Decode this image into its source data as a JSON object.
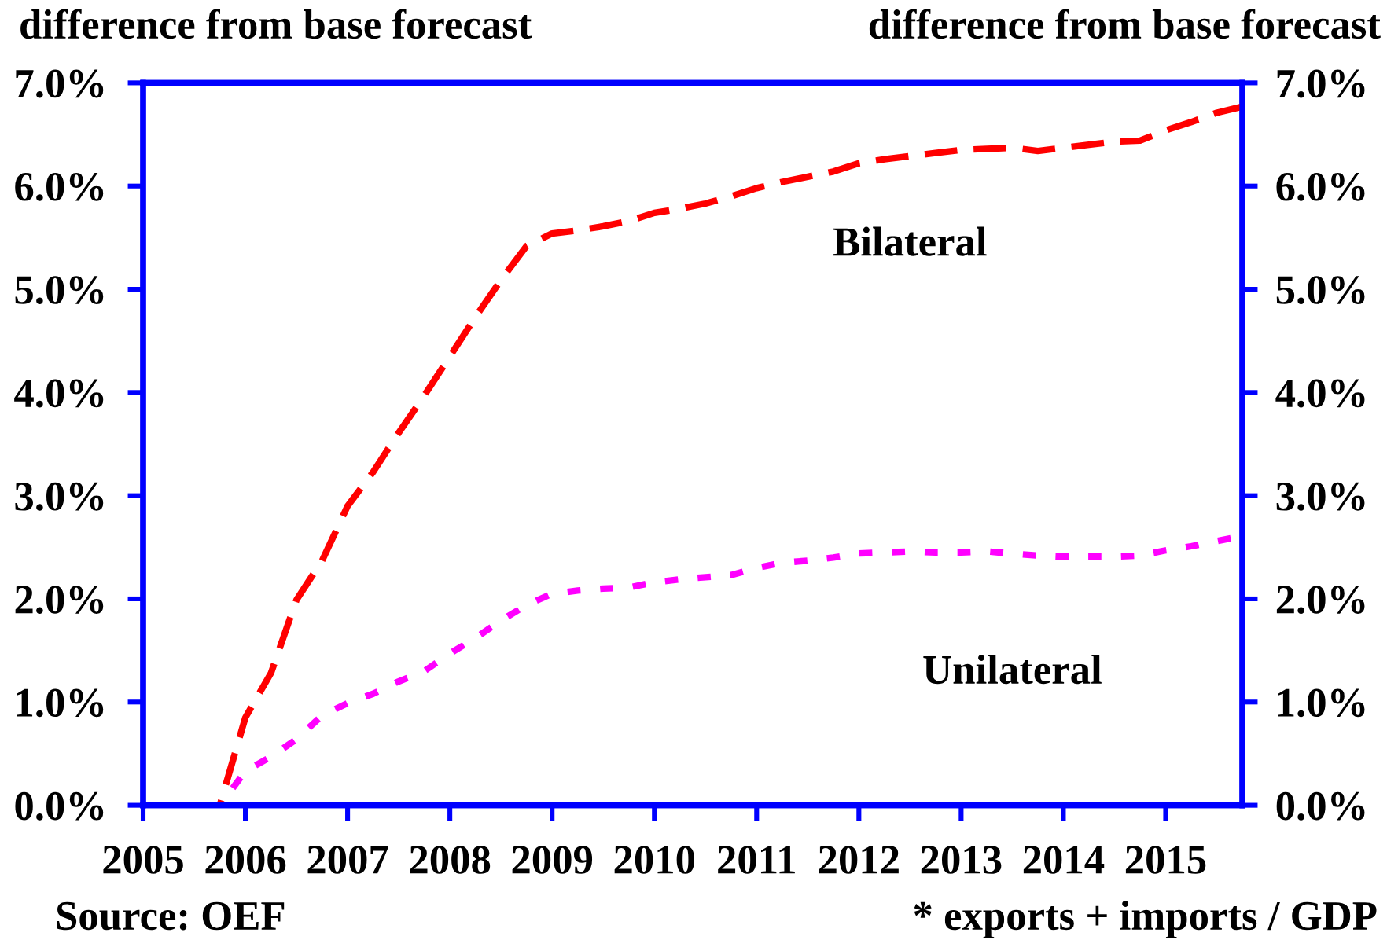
{
  "chart_data": {
    "type": "line",
    "ylabel": "difference from base forecast",
    "y2label": "difference from base forecast",
    "annotations": [
      "Source: OEF",
      "* exports + imports / GDP"
    ],
    "x": [
      2005,
      2005.25,
      2005.5,
      2005.75,
      2006,
      2006.25,
      2006.5,
      2006.75,
      2007,
      2007.25,
      2007.5,
      2007.75,
      2008,
      2008.25,
      2008.5,
      2008.75,
      2009,
      2009.25,
      2009.5,
      2009.75,
      2010,
      2010.25,
      2010.5,
      2010.75,
      2011,
      2011.25,
      2011.5,
      2011.75,
      2012,
      2012.25,
      2012.5,
      2012.75,
      2013,
      2013.25,
      2013.5,
      2013.75,
      2014,
      2014.25,
      2014.5,
      2014.75,
      2015,
      2015.25,
      2015.5,
      2015.75
    ],
    "xlim": [
      2005,
      2015.75
    ],
    "xticks": [
      2005,
      2006,
      2007,
      2008,
      2009,
      2010,
      2011,
      2012,
      2013,
      2014,
      2015
    ],
    "ylim": [
      0,
      7
    ],
    "yticks": [
      {
        "value": 0,
        "label": "0.0%"
      },
      {
        "value": 1,
        "label": "1.0%"
      },
      {
        "value": 2,
        "label": "2.0%"
      },
      {
        "value": 3,
        "label": "3.0%"
      },
      {
        "value": 4,
        "label": "4.0%"
      },
      {
        "value": 5,
        "label": "5.0%"
      },
      {
        "value": 6,
        "label": "6.0%"
      },
      {
        "value": 7,
        "label": "7.0%"
      }
    ],
    "y2lim": [
      0,
      7
    ],
    "y2ticks": [
      {
        "value": 0,
        "label": "0.0%"
      },
      {
        "value": 1,
        "label": "1.0%"
      },
      {
        "value": 2,
        "label": "2.0%"
      },
      {
        "value": 3,
        "label": "3.0%"
      },
      {
        "value": 4,
        "label": "4.0%"
      },
      {
        "value": 5,
        "label": "5.0%"
      },
      {
        "value": 6,
        "label": "6.0%"
      },
      {
        "value": 7,
        "label": "7.0%"
      }
    ],
    "series": [
      {
        "name": "Bilateral",
        "color": "#ff0000",
        "line_style": "dashed",
        "values": [
          0,
          0,
          0,
          0,
          0.85,
          1.28,
          1.99,
          2.37,
          2.9,
          3.23,
          3.61,
          3.97,
          4.35,
          4.73,
          5.09,
          5.42,
          5.54,
          5.57,
          5.61,
          5.66,
          5.74,
          5.78,
          5.83,
          5.9,
          5.98,
          6.04,
          6.09,
          6.14,
          6.22,
          6.26,
          6.29,
          6.32,
          6.35,
          6.36,
          6.37,
          6.34,
          6.37,
          6.4,
          6.43,
          6.44,
          6.54,
          6.62,
          6.71,
          6.77
        ]
      },
      {
        "name": "Unilateral",
        "color": "#ff00ff",
        "line_style": "dotted",
        "values": [
          0,
          0,
          0,
          0,
          0.33,
          0.47,
          0.64,
          0.87,
          0.99,
          1.08,
          1.2,
          1.3,
          1.47,
          1.62,
          1.79,
          1.94,
          2.05,
          2.08,
          2.1,
          2.11,
          2.16,
          2.19,
          2.21,
          2.23,
          2.3,
          2.35,
          2.37,
          2.4,
          2.44,
          2.45,
          2.46,
          2.45,
          2.45,
          2.46,
          2.44,
          2.42,
          2.41,
          2.41,
          2.41,
          2.42,
          2.47,
          2.51,
          2.56,
          2.61
        ]
      }
    ]
  }
}
